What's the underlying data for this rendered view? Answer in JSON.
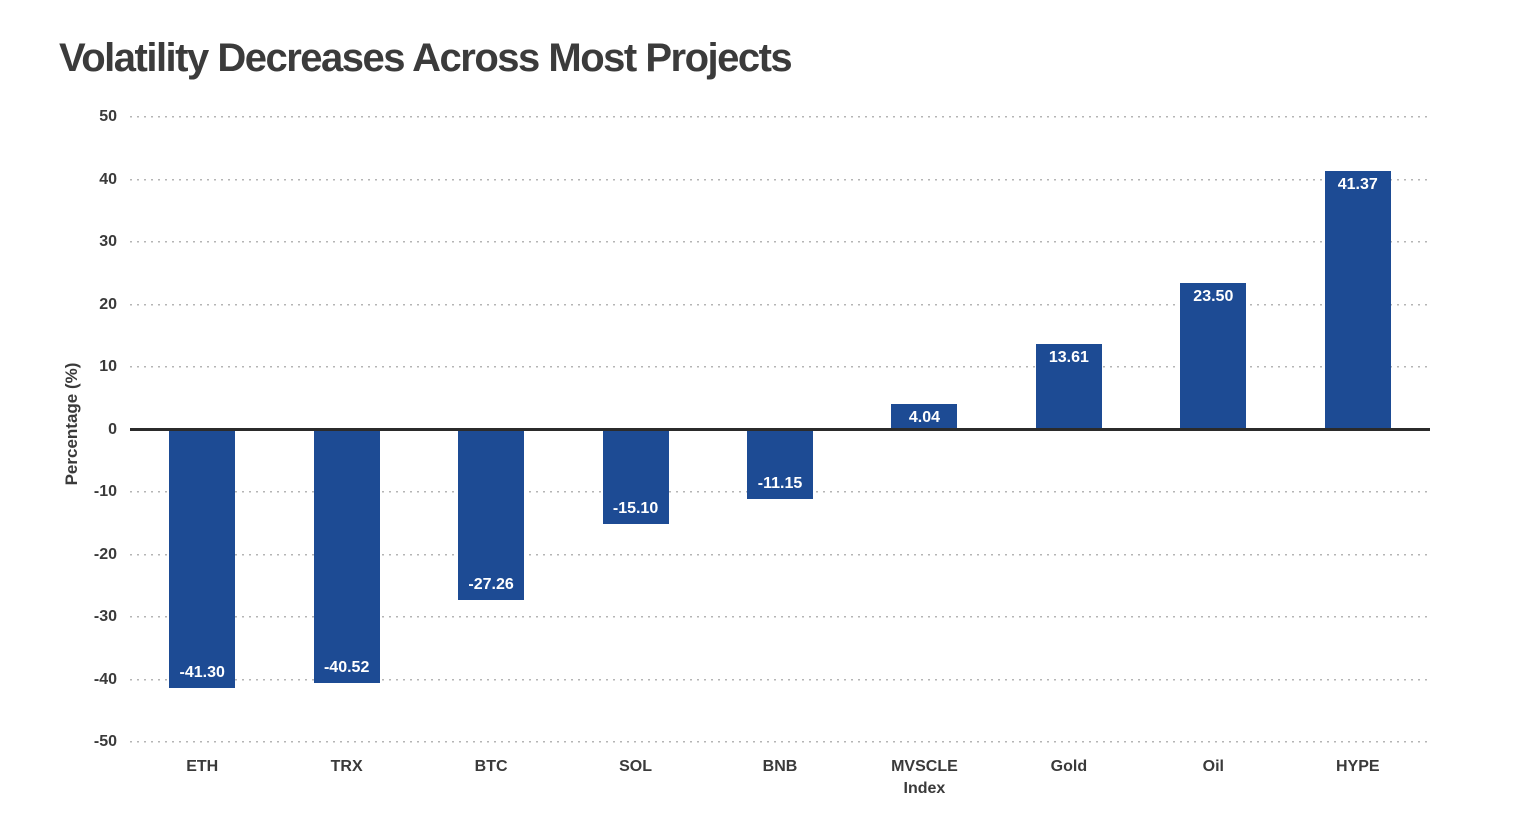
{
  "header": {
    "title": "Volatility Decreases Across Most Projects"
  },
  "colors": {
    "background": "#ffffff",
    "bar": "#1d4b94",
    "title_text": "#3b3b3b",
    "axis_text": "#3a3a3a",
    "grid_line": "#b5b5b5",
    "zero_line": "#2b2b2b",
    "value_label_text": "#ffffff"
  },
  "chart_data": {
    "type": "bar",
    "title": "Volatility Decreases Across Most Projects",
    "categories": [
      "ETH",
      "TRX",
      "BTC",
      "SOL",
      "BNB",
      "MVSCLE\nIndex",
      "Gold",
      "Oil",
      "HYPE"
    ],
    "values": [
      -41.3,
      -40.52,
      -27.26,
      -15.1,
      -11.15,
      4.04,
      13.61,
      23.5,
      41.37
    ],
    "value_labels": [
      "-41.30",
      "-40.52",
      "-27.26",
      "-15.10",
      "-11.15",
      "4.04",
      "13.61",
      "23.50",
      "41.37"
    ],
    "xlabel": "",
    "ylabel": "Percentage (%)",
    "ylim": [
      -50,
      50
    ],
    "yticks": [
      50,
      40,
      30,
      20,
      10,
      0,
      -10,
      -20,
      -30,
      -40,
      -50
    ],
    "grid": "horizontal-dotted",
    "legend": "none",
    "value_label_position": "inside-end"
  }
}
